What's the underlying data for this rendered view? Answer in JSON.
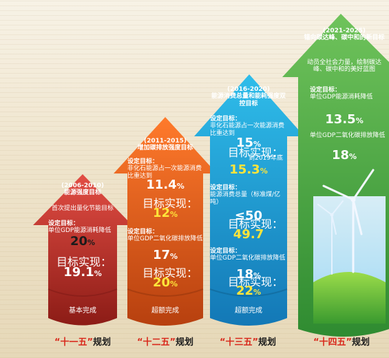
{
  "plans": [
    {
      "years": "(2006-2010)",
      "title": "能源强度目标",
      "note": "首次提出量化节能目标",
      "labels": {
        "set_target": "设定目标：",
        "achieved": "目标实现："
      },
      "items": [
        {
          "text": "单位GDP能源消耗降低",
          "target_value": "20",
          "achieved_value": "19.1",
          "unit": "%"
        }
      ],
      "status": "基本完成",
      "label_left": "“十一五”",
      "label_right": "规划"
    },
    {
      "years": "(2011-2015)",
      "title": "增加碳排放强度目标",
      "labels": {
        "set_target": "设定目标：",
        "achieved": "目标实现："
      },
      "items": [
        {
          "text": "非化石能源占一次能源消费比重达到",
          "target_value": "11.4",
          "achieved_value": "12",
          "unit": "%"
        },
        {
          "text": "单位GDP二氧化碳排放降低",
          "target_value": "17",
          "achieved_value": "20",
          "unit": "%"
        }
      ],
      "status": "超额完成",
      "label_left": "“十二五”",
      "label_right": "规划"
    },
    {
      "years": "(2016-2020)",
      "title": "能源消费总量和能耗强度双控目标",
      "labels": {
        "set_target": "设定目标：",
        "achieved": "目标实现："
      },
      "items": [
        {
          "text": "非化石能源占一次能源消费比重达到",
          "target_value": "15",
          "achieved_note": "到2019年底",
          "achieved_value": "15.3",
          "unit": "%"
        },
        {
          "text": "能源消费总量（标准煤/亿吨）",
          "target_value": "≤50",
          "achieved_value": "49.7"
        },
        {
          "text": "单位GDP二氧化碳排放降低",
          "target_value": "18",
          "achieved_value": "22",
          "unit": "%"
        }
      ],
      "status": "超额完成",
      "label_left": "“十三五”",
      "label_right": "规划"
    },
    {
      "years": "(2021-2025)",
      "title": "锚向碳达峰、碳中和的新目标",
      "note": "动员全社会力量，绘制碳达峰、碳中和的美好蓝图",
      "labels": {
        "set_target": "设定目标："
      },
      "items": [
        {
          "text": "单位GDP能源消耗降低",
          "target_value": "13.5",
          "unit": "%"
        },
        {
          "text": "单位GDP二氧化碳排放降低",
          "target_value": "18",
          "unit": "%"
        }
      ],
      "label_left": "“十四五”",
      "label_right": "规划"
    }
  ]
}
